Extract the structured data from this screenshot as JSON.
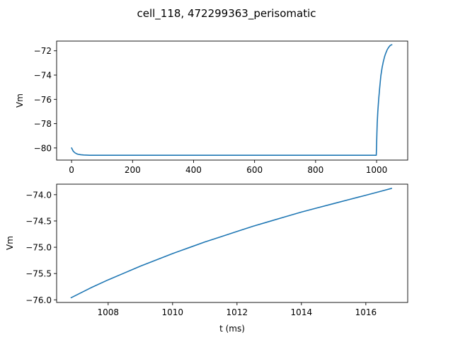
{
  "figure": {
    "title": "cell_118, 472299363_perisomatic"
  },
  "chart_data": [
    {
      "type": "line",
      "title": "",
      "xlabel": "",
      "ylabel": "Vm",
      "xlim": [
        -49,
        1102
      ],
      "ylim": [
        -81.0,
        -71.2
      ],
      "xticks": [
        0,
        200,
        400,
        600,
        800,
        1000
      ],
      "xtick_labels": [
        "0",
        "200",
        "400",
        "600",
        "800",
        "1000"
      ],
      "yticks": [
        -80,
        -78,
        -76,
        -74,
        -72
      ],
      "ytick_labels": [
        "−80",
        "−78",
        "−76",
        "−74",
        "−72"
      ],
      "grid": false,
      "color": "#1f77b4",
      "series": [
        {
          "name": "",
          "x": [
            0,
            5,
            10,
            15,
            20,
            30,
            40,
            60,
            80,
            100,
            150,
            200,
            400,
            600,
            800,
            999,
            1000.3,
            1001,
            1002,
            1004,
            1007,
            1010,
            1014,
            1018,
            1022,
            1026,
            1030,
            1035,
            1040,
            1045,
            1050
          ],
          "y": [
            -80.0,
            -80.25,
            -80.38,
            -80.46,
            -80.51,
            -80.56,
            -80.58,
            -80.6,
            -80.6,
            -80.6,
            -80.6,
            -80.6,
            -80.6,
            -80.6,
            -80.6,
            -80.6,
            -79.5,
            -78.8,
            -78.0,
            -77.0,
            -75.95,
            -75.1,
            -74.05,
            -73.4,
            -72.9,
            -72.5,
            -72.2,
            -71.9,
            -71.7,
            -71.55,
            -71.5
          ]
        }
      ]
    },
    {
      "type": "line",
      "title": "",
      "xlabel": "t (ms)",
      "ylabel": "Vm",
      "xlim": [
        1006.4,
        1017.3
      ],
      "ylim": [
        -76.05,
        -73.8
      ],
      "xticks": [
        1008,
        1010,
        1012,
        1014,
        1016
      ],
      "xtick_labels": [
        "1008",
        "1010",
        "1012",
        "1014",
        "1016"
      ],
      "yticks": [
        -76.0,
        -75.5,
        -75.0,
        -74.5,
        -74.0
      ],
      "ytick_labels": [
        "−76.0",
        "−75.5",
        "−75.0",
        "−74.5",
        "−74.0"
      ],
      "grid": false,
      "color": "#1f77b4",
      "series": [
        {
          "name": "",
          "x": [
            1006.85,
            1007.5,
            1008.0,
            1008.5,
            1009.0,
            1009.5,
            1010.0,
            1010.5,
            1011.0,
            1011.5,
            1012.0,
            1012.5,
            1013.0,
            1013.5,
            1014.0,
            1014.5,
            1015.0,
            1015.5,
            1016.0,
            1016.5,
            1016.8
          ],
          "y": [
            -75.96,
            -75.76,
            -75.62,
            -75.49,
            -75.36,
            -75.24,
            -75.12,
            -75.01,
            -74.9,
            -74.8,
            -74.7,
            -74.6,
            -74.51,
            -74.42,
            -74.33,
            -74.25,
            -74.17,
            -74.09,
            -74.01,
            -73.93,
            -73.88
          ]
        }
      ]
    }
  ]
}
